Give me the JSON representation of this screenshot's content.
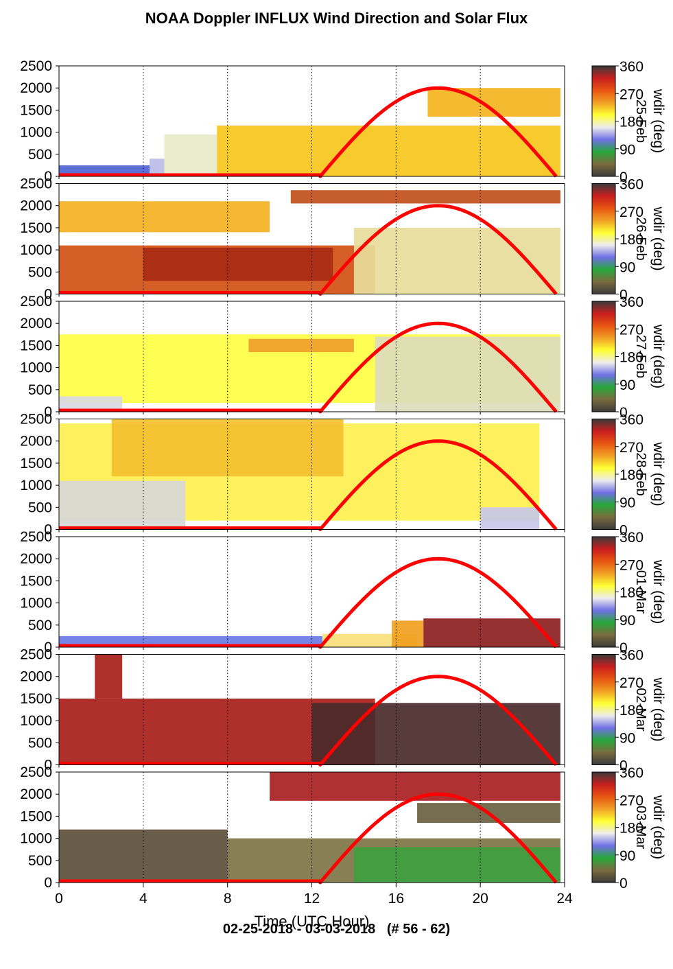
{
  "title": "NOAA Doppler INFLUX Wind Direction and Solar Flux",
  "footer": "02-25-2018 - 03-03-2018   (# 56 - 62)",
  "chart_data": {
    "type": "heatmap",
    "xlabel": "Time (UTC Hour)",
    "xlim": [
      0,
      24
    ],
    "x_ticks": [
      "0",
      "4",
      "8",
      "12",
      "16",
      "20",
      "24"
    ],
    "ylim": [
      0,
      2500
    ],
    "y_ticks": [
      "0",
      "500",
      "1000",
      "1500",
      "2000",
      "2500"
    ],
    "colorbar": {
      "label": "wdir (deg)",
      "range": [
        0,
        360
      ],
      "ticks": [
        "0",
        "90",
        "180",
        "270",
        "360"
      ],
      "colors": [
        "#3a3a3a",
        "#7a6b3e",
        "#27a83a",
        "#7070e6",
        "#ededed",
        "#ffff33",
        "#f0a024",
        "#e85512",
        "#c81e1e",
        "#3a3a3a"
      ]
    },
    "solar_flux": {
      "color": "#ff0000",
      "sunrise_hour": 12.4,
      "sunset_hour": 23.6,
      "peak_hour": 18,
      "peak_height": 2000
    },
    "panels": [
      {
        "date": "25-Feb",
        "layers": [
          {
            "color": "#4f64d6",
            "x0": 0,
            "x1": 4.3,
            "y0": 0,
            "y1": 250
          },
          {
            "color": "#b9bde8",
            "x0": 4.3,
            "x1": 5,
            "y0": 0,
            "y1": 400
          },
          {
            "color": "#e8e8c8",
            "x0": 5,
            "x1": 7.5,
            "y0": 0,
            "y1": 950
          },
          {
            "color": "#f6c51c",
            "x0": 7.5,
            "x1": 23.8,
            "y0": 0,
            "y1": 1150
          },
          {
            "color": "#f4b41e",
            "x0": 17.5,
            "x1": 23.8,
            "y0": 1350,
            "y1": 2000
          }
        ]
      },
      {
        "date": "26-Feb",
        "layers": [
          {
            "color": "#d05012",
            "x0": 0,
            "x1": 15,
            "y0": 0,
            "y1": 1100
          },
          {
            "color": "#a82a14",
            "x0": 4,
            "x1": 13,
            "y0": 300,
            "y1": 1050
          },
          {
            "color": "#e8dc9a",
            "x0": 14,
            "x1": 23.8,
            "y0": 0,
            "y1": 1500
          },
          {
            "color": "#f4b021",
            "x0": 0,
            "x1": 10,
            "y0": 1400,
            "y1": 2100
          },
          {
            "color": "#c0501a",
            "x0": 11,
            "x1": 23.8,
            "y0": 2050,
            "y1": 2350
          }
        ]
      },
      {
        "date": "27-Feb",
        "layers": [
          {
            "color": "#ffff44",
            "x0": 0,
            "x1": 23.8,
            "y0": 200,
            "y1": 1750
          },
          {
            "color": "#d8d8e4",
            "x0": 0,
            "x1": 3,
            "y0": 0,
            "y1": 350
          },
          {
            "color": "#f0a02a",
            "x0": 9,
            "x1": 14,
            "y0": 1350,
            "y1": 1650
          },
          {
            "color": "#dcdcbc",
            "x0": 15,
            "x1": 23.8,
            "y0": 0,
            "y1": 1700
          }
        ]
      },
      {
        "date": "28-Feb",
        "layers": [
          {
            "color": "#fff050",
            "x0": 0,
            "x1": 22.8,
            "y0": 200,
            "y1": 2400
          },
          {
            "color": "#f4c030",
            "x0": 2.5,
            "x1": 13.5,
            "y0": 1200,
            "y1": 2500
          },
          {
            "color": "#d8d8d8",
            "x0": 0,
            "x1": 6,
            "y0": 0,
            "y1": 1100
          },
          {
            "color": "#c8c8e8",
            "x0": 20,
            "x1": 22.8,
            "y0": 0,
            "y1": 500
          }
        ]
      },
      {
        "date": "01-Mar",
        "layers": [
          {
            "color": "#6a7ae6",
            "x0": 0,
            "x1": 12.5,
            "y0": 0,
            "y1": 250
          },
          {
            "color": "#f8e07a",
            "x0": 12.5,
            "x1": 17,
            "y0": 0,
            "y1": 300
          },
          {
            "color": "#f0a020",
            "x0": 15.8,
            "x1": 17.3,
            "y0": 0,
            "y1": 600
          },
          {
            "color": "#8e1e1e",
            "x0": 17.3,
            "x1": 23.8,
            "y0": 0,
            "y1": 650
          }
        ]
      },
      {
        "date": "02-Mar",
        "layers": [
          {
            "color": "#a81d18",
            "x0": 0,
            "x1": 15,
            "y0": 0,
            "y1": 1500
          },
          {
            "color": "#a82018",
            "x0": 1.7,
            "x1": 3,
            "y0": 1500,
            "y1": 2500
          },
          {
            "color": "#4a2a2a",
            "x0": 12,
            "x1": 23.8,
            "y0": 0,
            "y1": 1400
          }
        ]
      },
      {
        "date": "03-Mar",
        "layers": [
          {
            "color": "#5c4e38",
            "x0": 0,
            "x1": 8,
            "y0": 0,
            "y1": 1200
          },
          {
            "color": "#7e7446",
            "x0": 8,
            "x1": 23.8,
            "y0": 0,
            "y1": 1000
          },
          {
            "color": "#3fa040",
            "x0": 14,
            "x1": 23.8,
            "y0": 0,
            "y1": 800
          },
          {
            "color": "#a82020",
            "x0": 10,
            "x1": 23.8,
            "y0": 1850,
            "y1": 2500
          },
          {
            "color": "#6a6040",
            "x0": 17,
            "x1": 23.8,
            "y0": 1350,
            "y1": 1800
          }
        ]
      }
    ]
  }
}
